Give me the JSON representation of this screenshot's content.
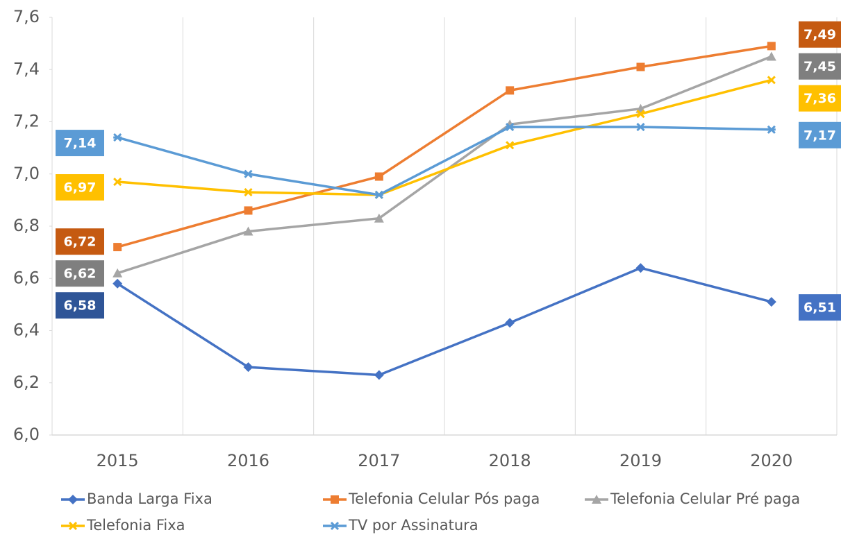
{
  "chart_data": {
    "type": "line",
    "categories": [
      "2015",
      "2016",
      "2017",
      "2018",
      "2019",
      "2020"
    ],
    "series": [
      {
        "name": "Banda Larga Fixa",
        "color": "#4472c4",
        "marker": "diamond",
        "label_colors": [
          "#2f5597",
          "#4472c4"
        ],
        "values": [
          6.58,
          6.26,
          6.23,
          6.43,
          6.64,
          6.51
        ],
        "value_labels": [
          "6,58",
          null,
          null,
          null,
          null,
          "6,51"
        ]
      },
      {
        "name": "Telefonia Celular Pós paga",
        "color": "#ed7d31",
        "marker": "square",
        "label_colors": [
          "#c55a11",
          "#c55a11"
        ],
        "values": [
          6.72,
          6.86,
          6.99,
          7.32,
          7.41,
          7.49
        ],
        "value_labels": [
          "6,72",
          null,
          null,
          null,
          null,
          "7,49"
        ]
      },
      {
        "name": "Telefonia Celular Pré paga",
        "color": "#a5a5a5",
        "marker": "triangle",
        "label_colors": [
          "#7f7f7f",
          "#7f7f7f"
        ],
        "values": [
          6.62,
          6.78,
          6.83,
          7.19,
          7.25,
          7.45
        ],
        "value_labels": [
          "6,62",
          null,
          null,
          null,
          null,
          "7,45"
        ]
      },
      {
        "name": "Telefonia Fixa",
        "color": "#ffc000",
        "marker": "x",
        "label_colors": [
          "#ffc000",
          "#ffc000"
        ],
        "values": [
          6.97,
          6.93,
          6.92,
          7.11,
          7.23,
          7.36
        ],
        "value_labels": [
          "6,97",
          null,
          null,
          null,
          null,
          "7,36"
        ]
      },
      {
        "name": "TV por Assinatura",
        "color": "#5b9bd5",
        "marker": "star",
        "label_colors": [
          "#5b9bd5",
          "#5b9bd5"
        ],
        "values": [
          7.14,
          7.0,
          6.92,
          7.18,
          7.18,
          7.17
        ],
        "value_labels": [
          "7,14",
          null,
          null,
          null,
          null,
          "7,17"
        ]
      }
    ],
    "ylim": [
      6.0,
      7.6
    ],
    "yticks": [
      {
        "value": 6.0,
        "label": "6,0"
      },
      {
        "value": 6.2,
        "label": "6,2"
      },
      {
        "value": 6.4,
        "label": "6,4"
      },
      {
        "value": 6.6,
        "label": "6,6"
      },
      {
        "value": 6.8,
        "label": "6,8"
      },
      {
        "value": 7.0,
        "label": "7,0"
      },
      {
        "value": 7.2,
        "label": "7,2"
      },
      {
        "value": 7.4,
        "label": "7,4"
      },
      {
        "value": 7.6,
        "label": "7,6"
      }
    ],
    "grid": "vertical",
    "legend": "bottom"
  }
}
